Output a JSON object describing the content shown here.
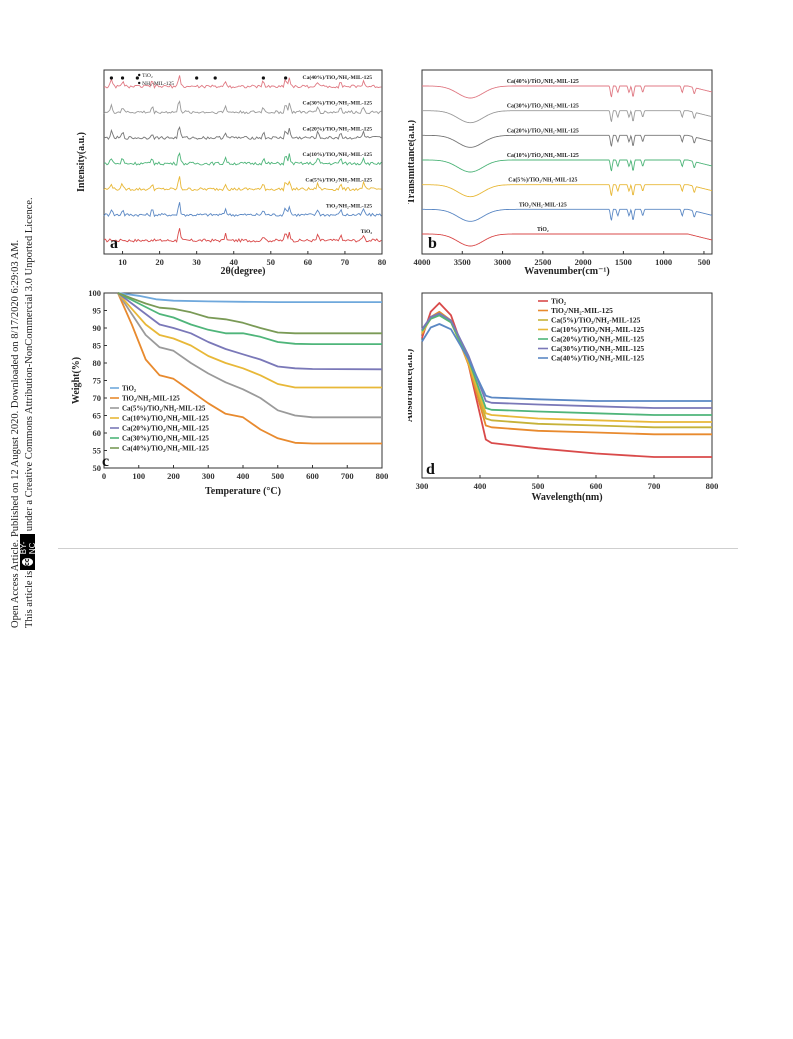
{
  "sidebar": {
    "line1": "Open Access Article. Published on 12 August 2020. Downloaded on 8/17/2020 6:29:03 AM.",
    "line2": "This article is licensed under a Creative Commons Attribution-NonCommercial 3.0 Unported Licence.",
    "badge_cc": "cc",
    "badge_text": "BY-NC"
  },
  "colors": {
    "red": "#d94a4a",
    "blue": "#5b88c4",
    "yellow": "#e8b838",
    "green": "#4fb57a",
    "gray": "#9a9a9a",
    "pink": "#e07a84",
    "orange": "#e88a2e",
    "lightblue": "#6fa8dc",
    "purple": "#7a78b8",
    "olive": "#c6b23a"
  },
  "chart_data": [
    {
      "panel": "a",
      "type": "line",
      "xlabel": "2θ(degree)",
      "ylabel": "Intensity(a.u.)",
      "xlim": [
        5,
        80
      ],
      "xticks": [
        "10",
        "20",
        "30",
        "40",
        "50",
        "60",
        "70",
        "80"
      ],
      "legend_markers": [
        "TiO₂",
        "NH₂-MIL-125"
      ],
      "series": [
        {
          "name": "TiO₂",
          "color": "#d94a4a"
        },
        {
          "name": "TiO₂/NH₂-MIL-125",
          "color": "#5b88c4"
        },
        {
          "name": "Ca(5%)/TiO₂/NH₂-MIL-125",
          "color": "#e8b838"
        },
        {
          "name": "Ca(10%)/TiO₂/NH₂-MIL-125",
          "color": "#4fb57a"
        },
        {
          "name": "Ca(20%)/TiO₂/NH₂-MIL-125",
          "color": "#777777"
        },
        {
          "name": "Ca(30%)/TiO₂/NH₂-MIL-125",
          "color": "#9a9a9a"
        },
        {
          "name": "Ca(40%)/TiO₂/NH₂-MIL-125",
          "color": "#e07a84"
        }
      ],
      "peaks_2theta": [
        7,
        10,
        18,
        25.3,
        37.8,
        48,
        54,
        55,
        62.7,
        68.8,
        75
      ]
    },
    {
      "panel": "b",
      "type": "line",
      "xlabel": "Wavenumber(cm⁻¹)",
      "ylabel": "Transmittance(a.u.)",
      "xlim": [
        4000,
        400
      ],
      "xticks": [
        "4000",
        "3500",
        "3000",
        "2500",
        "2000",
        "1500",
        "1000",
        "500"
      ],
      "series": [
        {
          "name": "TiO₂",
          "color": "#d94a4a"
        },
        {
          "name": "TiO₂/NH₂-MIL-125",
          "color": "#5b88c4"
        },
        {
          "name": "Ca(5%)/TiO₂/NH₂-MIL-125",
          "color": "#e8b838"
        },
        {
          "name": "Ca(10%)/TiO₂/NH₂-MIL-125",
          "color": "#4fb57a"
        },
        {
          "name": "Ca(20%)/TiO₂/NH₂-MIL-125",
          "color": "#777777"
        },
        {
          "name": "Ca(30%)/TiO₂/NH₂-MIL-125",
          "color": "#9a9a9a"
        },
        {
          "name": "Ca(40%)/TiO₂/NH₂-MIL-125",
          "color": "#e07a84"
        }
      ]
    },
    {
      "panel": "c",
      "type": "line",
      "xlabel": "Temperature (°C)",
      "ylabel": "Weight(%)",
      "xlim": [
        0,
        800
      ],
      "ylim": [
        50,
        100
      ],
      "xticks": [
        "0",
        "100",
        "200",
        "300",
        "400",
        "500",
        "600",
        "700",
        "800"
      ],
      "yticks": [
        "50",
        "55",
        "60",
        "65",
        "70",
        "75",
        "80",
        "85",
        "90",
        "95",
        "100"
      ],
      "legend_placement": "bottom-left",
      "series": [
        {
          "name": "TiO₂",
          "color": "#6fa8dc",
          "x": [
            40,
            100,
            150,
            200,
            300,
            400,
            500,
            600,
            800
          ],
          "y": [
            100,
            99.2,
            98.2,
            97.8,
            97.6,
            97.5,
            97.4,
            97.4,
            97.4
          ]
        },
        {
          "name": "TiO₂/NH₂-MIL-125",
          "color": "#e88a2e",
          "x": [
            40,
            80,
            120,
            160,
            200,
            250,
            300,
            350,
            400,
            450,
            500,
            550,
            600,
            800
          ],
          "y": [
            100,
            91,
            81,
            76.5,
            75.5,
            72,
            68.5,
            65.5,
            64.5,
            61,
            58.5,
            57.2,
            57,
            57
          ]
        },
        {
          "name": "Ca(5%)/TiO₂/NH₂-MIL-125",
          "color": "#9a9a9a",
          "x": [
            40,
            80,
            120,
            160,
            200,
            250,
            300,
            350,
            400,
            450,
            500,
            550,
            600,
            800
          ],
          "y": [
            100,
            94,
            88,
            84.5,
            83.5,
            80,
            77,
            74.5,
            72.5,
            70,
            66.5,
            65,
            64.5,
            64.5
          ]
        },
        {
          "name": "Ca(10%)/TiO₂/NH₂-MIL-125",
          "color": "#e8b838",
          "x": [
            40,
            80,
            120,
            160,
            200,
            250,
            300,
            350,
            400,
            450,
            500,
            550,
            600,
            800
          ],
          "y": [
            100,
            95.5,
            91,
            88,
            87,
            85,
            82,
            80,
            78.5,
            76.5,
            74,
            73,
            73,
            73
          ]
        },
        {
          "name": "Ca(20%)/TiO₂/NH₂-MIL-125",
          "color": "#7a78b8",
          "x": [
            40,
            80,
            120,
            160,
            200,
            250,
            300,
            350,
            400,
            450,
            500,
            550,
            600,
            800
          ],
          "y": [
            100,
            97,
            94,
            91,
            90,
            88.5,
            86,
            84,
            82.5,
            81,
            79,
            78.5,
            78.3,
            78.2
          ]
        },
        {
          "name": "Ca(30%)/TiO₂/NH₂-MIL-125",
          "color": "#4fb57a",
          "x": [
            40,
            80,
            120,
            160,
            200,
            250,
            300,
            350,
            400,
            450,
            500,
            550,
            600,
            800
          ],
          "y": [
            100,
            98,
            96,
            94,
            93,
            91,
            89.5,
            88.5,
            88.5,
            87.5,
            86,
            85.5,
            85.4,
            85.4
          ]
        },
        {
          "name": "Ca(40%)/TiO₂/NH₂-MIL-125",
          "color": "#7a9a56",
          "x": [
            40,
            80,
            120,
            160,
            200,
            250,
            300,
            350,
            400,
            450,
            500,
            550,
            600,
            800
          ],
          "y": [
            100,
            98.5,
            97,
            95.8,
            95.5,
            94.5,
            93,
            92.5,
            91.5,
            90,
            88.7,
            88.5,
            88.5,
            88.5
          ]
        }
      ]
    },
    {
      "panel": "d",
      "type": "line",
      "xlabel": "Wavelength(nm)",
      "ylabel": "Absorbance(a.u.)",
      "xlim": [
        300,
        800
      ],
      "xticks": [
        "300",
        "400",
        "500",
        "600",
        "700",
        "800"
      ],
      "legend_placement": "top-right",
      "series": [
        {
          "name": "TiO₂",
          "color": "#d94a4a",
          "x": [
            300,
            315,
            330,
            350,
            380,
            410,
            420,
            500,
            600,
            700,
            800
          ],
          "y": [
            0.8,
            0.95,
            1.0,
            0.93,
            0.65,
            0.22,
            0.2,
            0.17,
            0.14,
            0.12,
            0.12
          ]
        },
        {
          "name": "TiO₂/NH₂-MIL-125",
          "color": "#e88a2e",
          "x": [
            300,
            315,
            330,
            350,
            380,
            410,
            420,
            500,
            600,
            700,
            800
          ],
          "y": [
            0.82,
            0.92,
            0.95,
            0.9,
            0.65,
            0.3,
            0.29,
            0.27,
            0.26,
            0.25,
            0.25
          ]
        },
        {
          "name": "Ca(5%)/TiO₂/NH₂-MIL-125",
          "color": "#c6b23a",
          "x": [
            300,
            315,
            330,
            350,
            380,
            410,
            420,
            500,
            600,
            700,
            800
          ],
          "y": [
            0.83,
            0.92,
            0.94,
            0.9,
            0.66,
            0.34,
            0.33,
            0.31,
            0.3,
            0.29,
            0.29
          ]
        },
        {
          "name": "Ca(10%)/TiO₂/NH₂-MIL-125",
          "color": "#e8b838",
          "x": [
            300,
            315,
            330,
            350,
            380,
            410,
            420,
            500,
            600,
            700,
            800
          ],
          "y": [
            0.83,
            0.91,
            0.93,
            0.89,
            0.66,
            0.37,
            0.36,
            0.34,
            0.33,
            0.32,
            0.32
          ]
        },
        {
          "name": "Ca(20%)/TiO₂/NH₂-MIL-125",
          "color": "#4fb57a",
          "x": [
            300,
            315,
            330,
            350,
            380,
            410,
            420,
            500,
            600,
            700,
            800
          ],
          "y": [
            0.84,
            0.91,
            0.93,
            0.89,
            0.68,
            0.4,
            0.39,
            0.38,
            0.37,
            0.36,
            0.36
          ]
        },
        {
          "name": "Ca(30%)/TiO₂/NH₂-MIL-125",
          "color": "#7a78b8",
          "x": [
            300,
            315,
            330,
            350,
            380,
            410,
            420,
            500,
            600,
            700,
            800
          ],
          "y": [
            0.85,
            0.92,
            0.94,
            0.9,
            0.7,
            0.44,
            0.43,
            0.42,
            0.41,
            0.4,
            0.4
          ]
        },
        {
          "name": "Ca(40%)/TiO₂/NH₂-MIL-125",
          "color": "#5b88c4",
          "x": [
            300,
            315,
            330,
            350,
            380,
            410,
            420,
            500,
            600,
            700,
            800
          ],
          "y": [
            0.78,
            0.86,
            0.88,
            0.85,
            0.68,
            0.47,
            0.46,
            0.45,
            0.44,
            0.44,
            0.44
          ]
        }
      ]
    }
  ]
}
